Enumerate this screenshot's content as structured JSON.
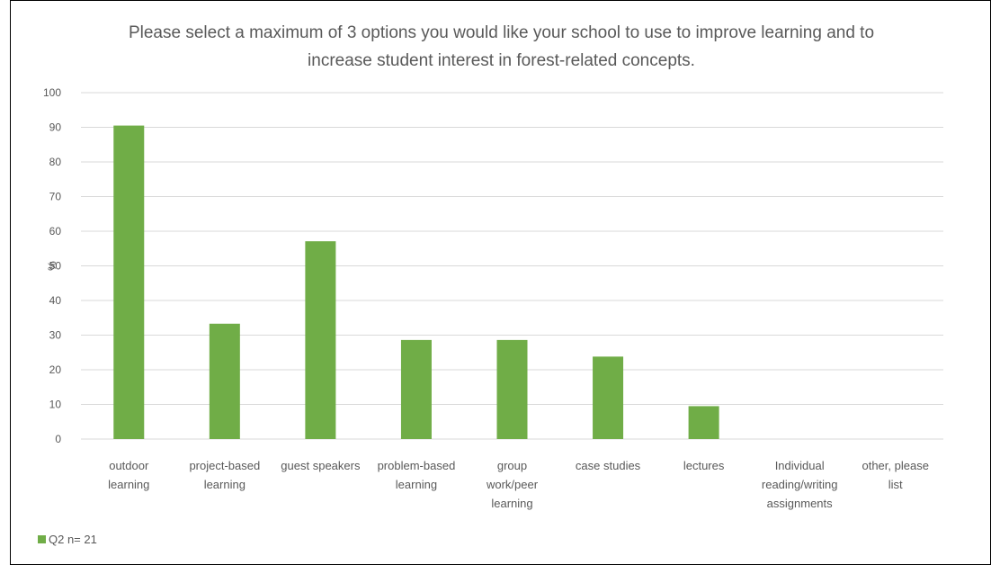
{
  "chart_data": {
    "type": "bar",
    "title_lines": [
      "Please select a maximum of 3 options you would like your school to use to improve learning and to",
      "increase student interest in forest-related concepts."
    ],
    "ylabel": "%",
    "xlabel": "",
    "ylim": [
      0,
      100
    ],
    "yticks": [
      0,
      10,
      20,
      30,
      40,
      50,
      60,
      70,
      80,
      90,
      100
    ],
    "grid": true,
    "legend_position": "bottom-left",
    "categories": [
      [
        "outdoor",
        "learning"
      ],
      [
        "project-based",
        "learning"
      ],
      [
        "guest speakers"
      ],
      [
        "problem-based",
        "learning"
      ],
      [
        "group",
        "work/peer",
        "learning"
      ],
      [
        "case studies"
      ],
      [
        "lectures"
      ],
      [
        "Individual",
        "reading/writing",
        "assignments"
      ],
      [
        "other, please",
        "list"
      ]
    ],
    "series": [
      {
        "name": "Q2 n= 21",
        "color": "#70ad47",
        "values": [
          90.5,
          33.3,
          57.1,
          28.6,
          28.6,
          23.8,
          9.5,
          0,
          0
        ]
      }
    ]
  }
}
